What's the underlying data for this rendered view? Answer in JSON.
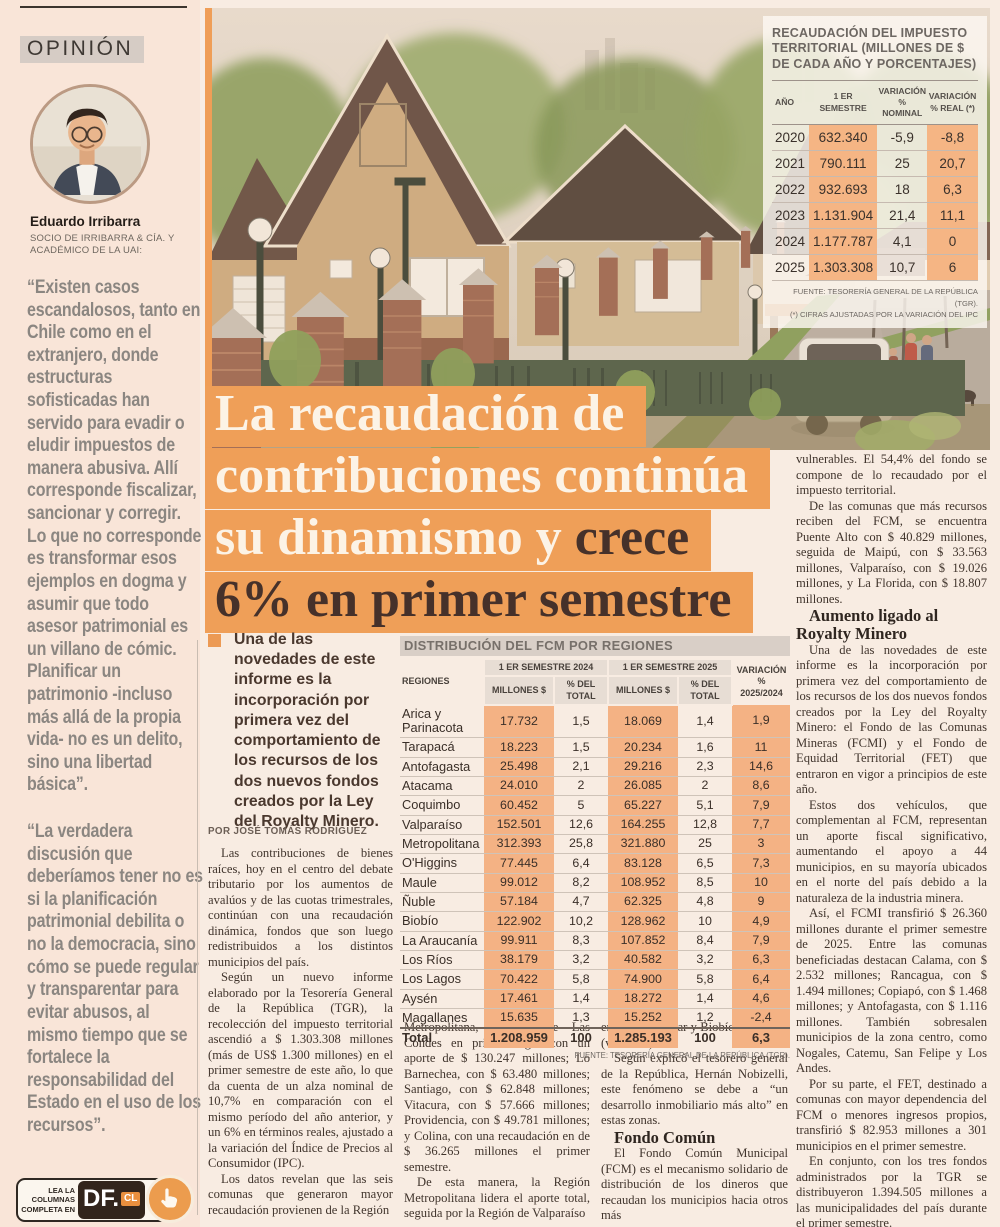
{
  "colors": {
    "accent_orange": "#ef9f58",
    "table_cell_orange": "#f4b284",
    "headline_light": "#fcf3e6",
    "headline_dark": "#46312a",
    "body_text": "#40342c",
    "quote_gray": "#8b8681",
    "band_gray": "#d6ccc5",
    "df_brown": "#32251c",
    "df_orange": "#e98f3e"
  },
  "sidebar": {
    "section_label": "OPINIÓN",
    "author_name": "Eduardo Irribarra",
    "author_role": "SOCIO DE IRRIBARRA & CÍA. Y ACADÉMICO DE LA UAI:",
    "quote1": "“Existen casos escandalosos, tanto en Chile como en el extranjero, donde estructuras sofisticadas han servido para evadir o eludir impuestos de manera abusiva. Allí corresponde fiscalizar, sancionar y corregir. Lo que no corresponde es transformar esos ejemplos en dogma y asumir que todo asesor patrimonial es un villano de cómic. Planificar un patrimonio -incluso más allá de la propia vida- no es un delito, sino una libertad básica”.",
    "quote2": "“La verdadera discusión que deberíamos tener no es si la planificación patrimonial debilita o no la democracia, sino cómo se puede regular y transparentar para evitar abusos, al mismo tiempo que se fortalece la responsabilidad del Estado en el uso de los recursos”.",
    "promo_label": "LEA LA COLUMNAS COMPLETA EN",
    "promo_logo": "DF.",
    "promo_logo_suffix": "CL"
  },
  "headline": {
    "line1": "La recaudación de",
    "line2": "contribuciones continúa",
    "line3_light": "su dinamismo y",
    "line3_dark": " crece",
    "line4": "6% en primer semestre"
  },
  "lead": {
    "text": "Una de las novedades de este informe es la incorporación por primera vez del comportamiento de los recursos de los dos nuevos fondos creados por la Ley del Royalty Minero.",
    "byline": "POR JOSÉ TOMÁS RODRÍGUEZ"
  },
  "article": {
    "col1": [
      "Las contribuciones de bienes raíces, hoy en el centro del debate tributario por los aumentos de avalúos y de las cuotas trimestrales, continúan con una recaudación dinámica, fondos que son luego redistribuidos a los distintos municipios del país.",
      "Según un nuevo informe elaborado por la Tesorería General de la República (TGR), la recolección del impuesto territorial ascendió a $ 1.303.308 millones (más de US$ 1.300 millones) en el primer semestre de este año, lo que da cuenta de un alza nominal de 10,7% en comparación con el mismo período del año anterior, y un 6% en términos reales, ajustado a la variación del Índice de Precios al Consumidor (IPC).",
      "Los datos revelan que las seis comunas que generaron mayor recaudación provienen de la Región"
    ],
    "col2": [
      "Metropolitana, destacándose Las Condes en primer lugar con un aporte de $ 130.247 millones; Lo Barnechea, con $ 63.480 millones; Santiago, con $ 62.848 millones; Vitacura, con $ 57.666 millones; Providencia, con $ 49.781 millones; y Colina, con una recaudación en de $ 36.265 millones el primer semestre.",
      "De esta manera, la Región Metropolitana lidera el aporte total, seguida por la Región de Valparaíso"
    ],
    "col3_paras": [
      "en segundo lugar y Biobío en tercero (ver tabla).",
      "Según explicó el tesorero general de la República, Hernán Nobizelli, este fenómeno se debe a “un desarrollo inmobiliario más alto” en estas zonas."
    ],
    "col3_subhead": "Fondo Común",
    "col3_paras2": [
      "El Fondo Común Municipal (FCM) es el mecanismo solidario de distribución de los dineros que recaudan los municipios hacia otros más"
    ],
    "col4_paras": [
      "vulnerables. El 54,4% del fondo se compone de lo recaudado por el impuesto territorial.",
      "De las comunas que más recursos reciben del FCM, se encuentra Puente Alto con $ 40.829 millones, seguida de Maipú, con $ 33.563 millones, Valparaíso, con $ 19.026 millones, y La Florida, con $ 18.807 millones."
    ],
    "col4_subhead": "Aumento ligado al Royalty Minero",
    "col4_paras2": [
      "Una de las novedades de este informe es la incorporación por primera vez del comportamiento de los recursos de los dos nuevos fondos creados por la Ley del Royalty Minero: el Fondo de las Comunas Mineras (FCMI) y el Fondo de Equidad Territorial (FET) que entraron en vigor a principios de este año.",
      "Estos dos vehículos, que complementan al FCM, representan un aporte fiscal significativo, aumentando el apoyo a 44 municipios, en su mayoría ubicados en el norte del país debido a la naturaleza de la industria minera.",
      "Así, el FCMI transfirió $ 26.360 millones durante el primer semestre de 2025. Entre las comunas beneficiadas destacan Calama, con $ 2.532 millones; Rancagua, con $ 1.494 millones; Copiapó, con $ 1.468 millones; y Antofagasta, con $ 1.116 millones. También sobresalen municipios de la zona centro, como Nogales, Catemu, San Felipe y Los Andes.",
      "Por su parte, el FET, destinado a comunas con mayor dependencia del FCM o menores ingresos propios, transfirió $ 82.953 millones a 301 municipios en el primer semestre.",
      "En conjunto, con los tres fondos administrados por la TGR se distribuyeron 1.394.505 millones a las municipalidades del país durante el primer semestre."
    ]
  },
  "tables": {
    "tax": {
      "title": "RECAUDACIÓN DEL IMPUESTO TERRITORIAL (MILLONES DE $ DE CADA AÑO Y PORCENTAJES)",
      "headers": [
        "AÑO",
        "1 ER SEMESTRE",
        "VARIACIÓN % NOMINAL",
        "VARIACIÓN % REAL (*)"
      ],
      "rows": [
        [
          "2020",
          "632.340",
          "-5,9",
          "-8,8"
        ],
        [
          "2021",
          "790.111",
          "25",
          "20,7"
        ],
        [
          "2022",
          "932.693",
          "18",
          "6,3"
        ],
        [
          "2023",
          "1.131.904",
          "21,4",
          "11,1"
        ],
        [
          "2024",
          "1.177.787",
          "4,1",
          "0"
        ],
        [
          "2025",
          "1.303.308",
          "10,7",
          "6"
        ]
      ],
      "source": "FUENTE: TESORERÍA GENERAL DE LA REPÚBLICA (TGR).",
      "note": "(*) CIFRAS AJUSTADAS POR LA VARIACIÓN DEL IPC"
    },
    "regions": {
      "title": "DISTRIBUCIÓN DEL FCM POR REGIONES",
      "col_region": "REGIONES",
      "group_2024": "1 ER SEMESTRE 2024",
      "group_2025": "1 ER SEMESTRE 2025",
      "col_millones": "MILLONES $",
      "col_pct": "% DEL TOTAL",
      "col_var": "VARIACIÓN % 2025/2024",
      "rows": [
        [
          "Arica y Parinacota",
          "17.732",
          "1,5",
          "18.069",
          "1,4",
          "1,9"
        ],
        [
          "Tarapacá",
          "18.223",
          "1,5",
          "20.234",
          "1,6",
          "11"
        ],
        [
          "Antofagasta",
          "25.498",
          "2,1",
          "29.216",
          "2,3",
          "14,6"
        ],
        [
          "Atacama",
          "24.010",
          "2",
          "26.085",
          "2",
          "8,6"
        ],
        [
          "Coquimbo",
          "60.452",
          "5",
          "65.227",
          "5,1",
          "7,9"
        ],
        [
          "Valparaíso",
          "152.501",
          "12,6",
          "164.255",
          "12,8",
          "7,7"
        ],
        [
          "Metropolitana",
          "312.393",
          "25,8",
          "321.880",
          "25",
          "3"
        ],
        [
          "O'Higgins",
          "77.445",
          "6,4",
          "83.128",
          "6,5",
          "7,3"
        ],
        [
          "Maule",
          "99.012",
          "8,2",
          "108.952",
          "8,5",
          "10"
        ],
        [
          "Ñuble",
          "57.184",
          "4,7",
          "62.325",
          "4,8",
          "9"
        ],
        [
          "Biobío",
          "122.902",
          "10,2",
          "128.962",
          "10",
          "4,9"
        ],
        [
          "La Araucanía",
          "99.911",
          "8,3",
          "107.852",
          "8,4",
          "7,9"
        ],
        [
          "Los Ríos",
          "38.179",
          "3,2",
          "40.582",
          "3,2",
          "6,3"
        ],
        [
          "Los Lagos",
          "70.422",
          "5,8",
          "74.900",
          "5,8",
          "6,4"
        ],
        [
          "Aysén",
          "17.461",
          "1,4",
          "18.272",
          "1,4",
          "4,6"
        ],
        [
          "Magallanes",
          "15.635",
          "1,3",
          "15.252",
          "1,2",
          "-2,4"
        ]
      ],
      "total_row": [
        "Total",
        "1.208.959",
        "100",
        "1.285.193",
        "100",
        "6,3"
      ],
      "source": "FUENTE: TESORERÍA GENERAL DE LA REPÚBLICA (TGR)."
    }
  }
}
